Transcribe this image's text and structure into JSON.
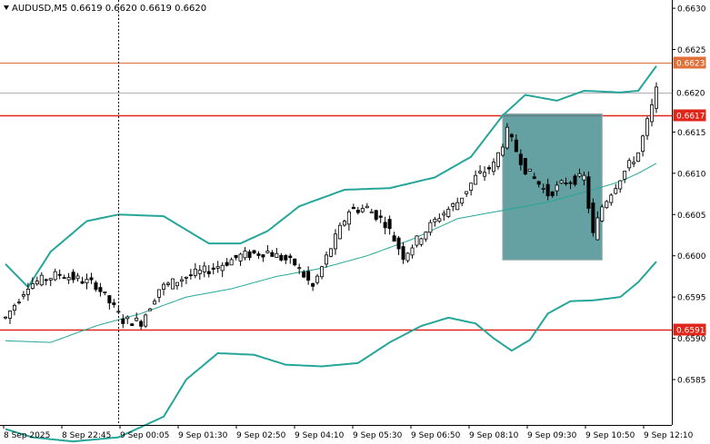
{
  "header": {
    "symbol": "AUDUSD,M5",
    "ohlc": "0.6619 0.6620 0.6619 0.6620"
  },
  "colors": {
    "candle": "#000000",
    "band": "#26a69a",
    "mid_line": "#26a69a",
    "support_resistance": "#e0261b",
    "upper_level": "#e0703a",
    "current_price_line": "#b0b0b0",
    "highlight_box": "#4a8f92",
    "axis": "#000000"
  },
  "chart_data": {
    "type": "candlestick",
    "symbol": "AUDUSD",
    "timeframe": "M5",
    "ylim": [
      0.65795,
      0.6631
    ],
    "y_ticks": [
      "0.6630",
      "0.6625",
      "0.6620",
      "0.6615",
      "0.6610",
      "0.6605",
      "0.6600",
      "0.6595",
      "0.6590",
      "0.6585"
    ],
    "x_ticks": [
      "8 Sep 2025",
      "8 Sep 22:45",
      "9 Sep 00:05",
      "9 Sep 01:30",
      "9 Sep 02:50",
      "9 Sep 04:10",
      "9 Sep 05:30",
      "9 Sep 06:50",
      "9 Sep 08:10",
      "9 Sep 09:30",
      "9 Sep 10:50",
      "9 Sep 12:10"
    ],
    "bar_count": 145,
    "levels": [
      {
        "label": "0.6623",
        "value": 0.66234,
        "role": "upper"
      },
      {
        "label": "0.6620",
        "value": 0.66198,
        "role": "current"
      },
      {
        "label": "0.6617",
        "value": 0.6617,
        "role": "resistance"
      },
      {
        "label": "0.6591",
        "value": 0.6591,
        "role": "support"
      }
    ],
    "highlight_box": {
      "x_start_bar": 110,
      "x_end_bar": 132,
      "y_low": 0.65995,
      "y_high": 0.66172
    },
    "vertical_marker_bar": 25,
    "price_path": [
      [
        0,
        0.65925
      ],
      [
        5,
        0.65965
      ],
      [
        12,
        0.65978
      ],
      [
        20,
        0.65965
      ],
      [
        26,
        0.65922
      ],
      [
        30,
        0.6592
      ],
      [
        34,
        0.6596
      ],
      [
        40,
        0.65975
      ],
      [
        46,
        0.65985
      ],
      [
        52,
        0.66
      ],
      [
        58,
        0.66005
      ],
      [
        64,
        0.6599
      ],
      [
        68,
        0.65962
      ],
      [
        72,
        0.6601
      ],
      [
        76,
        0.66055
      ],
      [
        80,
        0.66058
      ],
      [
        84,
        0.6604
      ],
      [
        88,
        0.66
      ],
      [
        92,
        0.66025
      ],
      [
        96,
        0.66048
      ],
      [
        100,
        0.66065
      ],
      [
        104,
        0.66095
      ],
      [
        108,
        0.6611
      ],
      [
        111,
        0.6615
      ],
      [
        115,
        0.66105
      ],
      [
        120,
        0.66075
      ],
      [
        124,
        0.6609
      ],
      [
        128,
        0.66095
      ],
      [
        130,
        0.66025
      ],
      [
        132,
        0.6606
      ],
      [
        136,
        0.66095
      ],
      [
        140,
        0.66125
      ],
      [
        143,
        0.6618
      ],
      [
        144,
        0.662
      ]
    ],
    "bollinger_upper": [
      [
        0,
        0.6599
      ],
      [
        5,
        0.65962
      ],
      [
        10,
        0.66005
      ],
      [
        18,
        0.66042
      ],
      [
        25,
        0.6605
      ],
      [
        35,
        0.66048
      ],
      [
        45,
        0.66015
      ],
      [
        52,
        0.66015
      ],
      [
        58,
        0.6603
      ],
      [
        65,
        0.6606
      ],
      [
        75,
        0.6608
      ],
      [
        85,
        0.66082
      ],
      [
        95,
        0.66095
      ],
      [
        103,
        0.6612
      ],
      [
        110,
        0.6617
      ],
      [
        115,
        0.66195
      ],
      [
        122,
        0.66188
      ],
      [
        128,
        0.662
      ],
      [
        136,
        0.66198
      ],
      [
        140,
        0.662
      ],
      [
        144,
        0.6623
      ]
    ],
    "bollinger_middle": [
      [
        0,
        0.65897
      ],
      [
        10,
        0.65895
      ],
      [
        20,
        0.65915
      ],
      [
        30,
        0.6593
      ],
      [
        40,
        0.6595
      ],
      [
        50,
        0.6596
      ],
      [
        60,
        0.65975
      ],
      [
        70,
        0.65985
      ],
      [
        80,
        0.66
      ],
      [
        90,
        0.6602
      ],
      [
        100,
        0.66045
      ],
      [
        110,
        0.66055
      ],
      [
        120,
        0.66065
      ],
      [
        130,
        0.6608
      ],
      [
        136,
        0.6609
      ],
      [
        140,
        0.661
      ],
      [
        144,
        0.66112
      ]
    ],
    "bollinger_lower": [
      [
        0,
        0.6579
      ],
      [
        6,
        0.6578
      ],
      [
        15,
        0.65775
      ],
      [
        25,
        0.6578
      ],
      [
        35,
        0.65805
      ],
      [
        40,
        0.6585
      ],
      [
        47,
        0.65882
      ],
      [
        55,
        0.6588
      ],
      [
        62,
        0.65868
      ],
      [
        70,
        0.65866
      ],
      [
        78,
        0.6587
      ],
      [
        85,
        0.65895
      ],
      [
        92,
        0.65915
      ],
      [
        98,
        0.65925
      ],
      [
        104,
        0.65918
      ],
      [
        108,
        0.659
      ],
      [
        112,
        0.65885
      ],
      [
        116,
        0.65898
      ],
      [
        120,
        0.6593
      ],
      [
        125,
        0.65945
      ],
      [
        130,
        0.65946
      ],
      [
        136,
        0.6595
      ],
      [
        140,
        0.65968
      ],
      [
        144,
        0.65993
      ]
    ]
  }
}
